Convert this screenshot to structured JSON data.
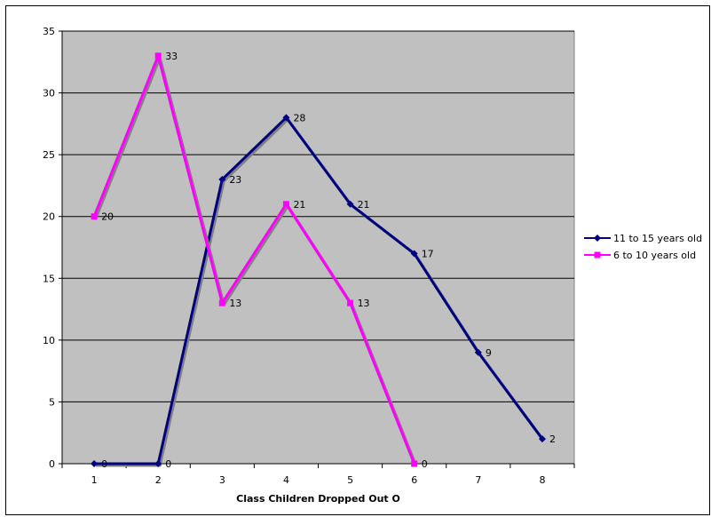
{
  "chart_data": {
    "type": "line",
    "title": "",
    "xlabel": "Class Children Dropped Out O",
    "ylabel": "",
    "x": [
      1,
      2,
      3,
      4,
      5,
      6,
      7,
      8
    ],
    "y_ticks": [
      0,
      5,
      10,
      15,
      20,
      25,
      30,
      35
    ],
    "ylim": [
      0,
      35
    ],
    "grid": true,
    "legend_position": "right",
    "series": [
      {
        "name": "11 to 15 years old",
        "color": "#000080",
        "marker": "diamond",
        "x": [
          1,
          2,
          3,
          4,
          5,
          6,
          7,
          8
        ],
        "values": [
          0,
          0,
          23,
          28,
          21,
          17,
          9,
          2
        ],
        "labels": [
          "0",
          "0",
          "23",
          "28",
          "21",
          "17",
          "9",
          "2"
        ]
      },
      {
        "name": "6 to 10 years old",
        "color": "#FF00FF",
        "marker": "square",
        "x": [
          1,
          2,
          3,
          4,
          5,
          6
        ],
        "values": [
          20,
          33,
          13,
          21,
          13,
          0
        ],
        "labels": [
          "20",
          "33",
          "13",
          "21",
          "13",
          "0"
        ]
      }
    ],
    "colors": {
      "plot_background": "#C0C0C0",
      "gridline": "#000000"
    }
  }
}
